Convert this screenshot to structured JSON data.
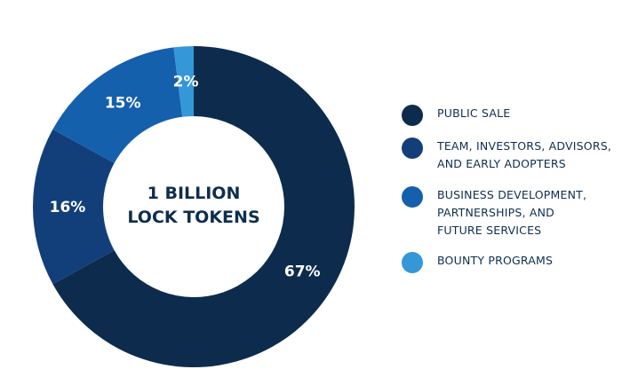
{
  "chart_data": {
    "type": "pie",
    "center_label": [
      "1 BILLION",
      "LOCK TOKENS"
    ],
    "categories": [
      "PUBLIC SALE",
      "TEAM, INVESTORS, ADVISORS, AND EARLY ADOPTERS",
      "BUSINESS DEVELOPMENT, PARTNERSHIPS, AND FUTURE SERVICES",
      "BOUNTY PROGRAMS"
    ],
    "values": [
      67,
      16,
      15,
      2
    ],
    "value_labels": [
      "67%",
      "16%",
      "15%",
      "2%"
    ],
    "colors": [
      "#0d2c4d",
      "#123f7a",
      "#1560ad",
      "#3497d8"
    ],
    "legend_placement": "right",
    "legend_lines": [
      [
        "PUBLIC SALE"
      ],
      [
        "TEAM, INVESTORS, ADVISORS,",
        "AND EARLY ADOPTERS"
      ],
      [
        "BUSINESS DEVELOPMENT,",
        "PARTNERSHIPS, AND",
        "FUTURE SERVICES"
      ],
      [
        "BOUNTY PROGRAMS"
      ]
    ]
  }
}
